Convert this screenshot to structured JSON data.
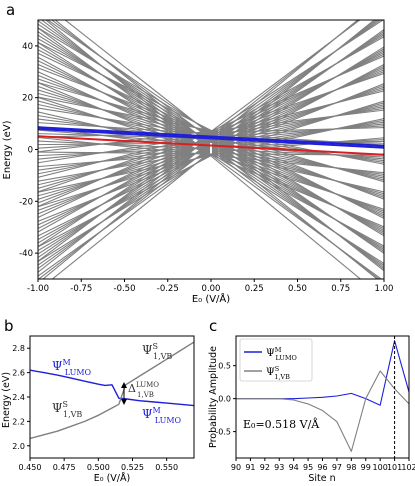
{
  "chart_data": [
    {
      "panel": "a",
      "type": "line",
      "xlabel": "E₀ (V/Å)",
      "ylabel": "Energy (eV)",
      "xlim": [
        -1.0,
        1.0
      ],
      "ylim": [
        -50,
        50
      ],
      "xticks": [
        "-1.00",
        "-0.75",
        "-0.50",
        "-0.25",
        "0.00",
        "0.25",
        "0.50",
        "0.75",
        "1.00"
      ],
      "xtick_values": [
        -1.0,
        -0.75,
        -0.5,
        -0.25,
        0.0,
        0.25,
        0.5,
        0.75,
        1.0
      ],
      "yticks": [
        "-40",
        "-20",
        "0",
        "20",
        "40"
      ],
      "ytick_values": [
        -40,
        -20,
        0,
        20,
        40
      ],
      "grid": false,
      "gray_fan": {
        "color": "#808080",
        "line_count": 90,
        "slope_range": [
          -55,
          55
        ],
        "intercept_range": [
          -2.5,
          7.5
        ]
      },
      "series": [
        {
          "color": "#1f1fd8",
          "x": [
            -1.0,
            1.0
          ],
          "y": [
            8.6,
            1.4
          ]
        },
        {
          "color": "#d91f1f",
          "x": [
            -1.0,
            1.0
          ],
          "y": [
            5.1,
            -2.0
          ]
        },
        {
          "color": "#1f1fd8",
          "x": [
            -1.0,
            1.0
          ],
          "y": [
            7.9,
            0.7
          ]
        }
      ]
    },
    {
      "panel": "b",
      "type": "line",
      "xlabel": "E₀ (V/Å)",
      "ylabel": "Energy (eV)",
      "xlim": [
        0.45,
        0.57
      ],
      "ylim": [
        1.9,
        2.9
      ],
      "xticks": [
        "0.450",
        "0.475",
        "0.500",
        "0.525",
        "0.550"
      ],
      "xtick_values": [
        0.45,
        0.475,
        0.5,
        0.525,
        0.55
      ],
      "yticks": [
        "2.0",
        "2.2",
        "2.4",
        "2.6",
        "2.8"
      ],
      "ytick_values": [
        2.0,
        2.2,
        2.4,
        2.6,
        2.8
      ],
      "series": [
        {
          "color": "#1f1fd8",
          "x": [
            0.45,
            0.46,
            0.47,
            0.48,
            0.49,
            0.5,
            0.505,
            0.51,
            0.515,
            0.52,
            0.53,
            0.54,
            0.55,
            0.56,
            0.57
          ],
          "y": [
            2.62,
            2.6,
            2.58,
            2.555,
            2.53,
            2.505,
            2.495,
            2.5,
            2.39,
            2.385,
            2.37,
            2.36,
            2.35,
            2.34,
            2.33
          ]
        },
        {
          "color": "#808080",
          "x": [
            0.45,
            0.46,
            0.47,
            0.48,
            0.49,
            0.5,
            0.505,
            0.51,
            0.515,
            0.52,
            0.53,
            0.54,
            0.55,
            0.56,
            0.57
          ],
          "y": [
            2.06,
            2.09,
            2.12,
            2.16,
            2.2,
            2.25,
            2.28,
            2.31,
            2.34,
            2.5,
            2.57,
            2.64,
            2.71,
            2.78,
            2.85
          ]
        }
      ],
      "annotations": {
        "psi_m_lumo_left": "Ψ",
        "psi_m_lumo_right": "Ψ",
        "psi_s_vb_top": "Ψ",
        "psi_s_vb_bottom": "Ψ",
        "sup_m": "M",
        "sub_lumo": "LUMO",
        "sup_s": "S",
        "sub_vb": "1,VB",
        "delta": "Δ",
        "delta_sup": "LUMO",
        "delta_sub": "1,VB"
      }
    },
    {
      "panel": "c",
      "type": "line",
      "xlabel": "Site n",
      "ylabel": "Probability Amplitude",
      "xlim": [
        90,
        102
      ],
      "ylim": [
        -0.9,
        0.95
      ],
      "xticks": [
        "90",
        "91",
        "92",
        "93",
        "94",
        "95",
        "96",
        "97",
        "98",
        "99",
        "100",
        "101",
        "102"
      ],
      "xtick_values": [
        90,
        91,
        92,
        93,
        94,
        95,
        96,
        97,
        98,
        99,
        100,
        101,
        102
      ],
      "yticks": [
        "-0.5",
        "0.0",
        "0.5"
      ],
      "ytick_values": [
        -0.5,
        0.0,
        0.5
      ],
      "vline_x": 101,
      "legend_placement": "top-left",
      "series": [
        {
          "name_main": "Ψ",
          "name_sup": "M",
          "name_sub": "LUMO",
          "color": "#1f1fd8",
          "x": [
            90,
            91,
            92,
            93,
            94,
            95,
            96,
            97,
            98,
            99,
            100,
            101,
            102
          ],
          "y": [
            0.0,
            0.0,
            0.0,
            0.0,
            0.0,
            0.01,
            0.02,
            0.04,
            0.08,
            0.0,
            -0.1,
            0.88,
            0.1
          ]
        },
        {
          "name_main": "Ψ",
          "name_sup": "S",
          "name_sub": "1,VB",
          "color": "#808080",
          "x": [
            90,
            91,
            92,
            93,
            94,
            95,
            96,
            97,
            98,
            99,
            100,
            101,
            102
          ],
          "y": [
            0.0,
            0.0,
            0.0,
            0.0,
            -0.02,
            -0.08,
            -0.18,
            -0.35,
            -0.8,
            0.0,
            0.42,
            0.15,
            -0.08
          ]
        }
      ],
      "annotation_text": "E₀=0.518 V/Å"
    }
  ],
  "panel_labels": {
    "a": "a",
    "b": "b",
    "c": "c"
  }
}
